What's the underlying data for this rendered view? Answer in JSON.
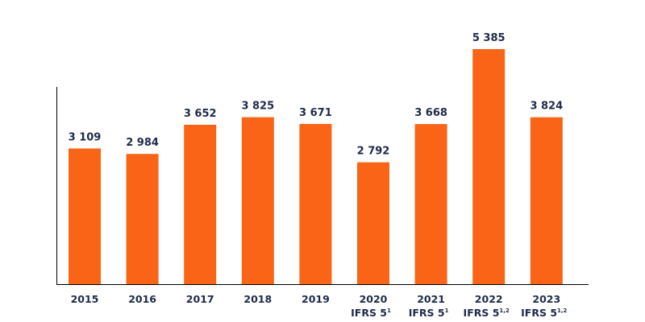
{
  "chart_data": {
    "type": "bar",
    "title": "",
    "xlabel": "",
    "ylabel": "",
    "ylim": [
      0,
      5385
    ],
    "grid": false,
    "categories": [
      {
        "year": "2015",
        "note": "",
        "sup": ""
      },
      {
        "year": "2016",
        "note": "",
        "sup": ""
      },
      {
        "year": "2017",
        "note": "",
        "sup": ""
      },
      {
        "year": "2018",
        "note": "",
        "sup": ""
      },
      {
        "year": "2019",
        "note": "",
        "sup": ""
      },
      {
        "year": "2020",
        "note": "IFRS 5",
        "sup": "1"
      },
      {
        "year": "2021",
        "note": "IFRS 5",
        "sup": "1"
      },
      {
        "year": "2022",
        "note": "IFRS 5",
        "sup": "1,2"
      },
      {
        "year": "2023",
        "note": "IFRS 5",
        "sup": "1,2"
      }
    ],
    "values": [
      3109,
      2984,
      3652,
      3825,
      3671,
      2792,
      3668,
      5385,
      3824
    ],
    "data_labels": [
      "3 109",
      "2 984",
      "3 652",
      "3 825",
      "3 671",
      "2 792",
      "3 668",
      "5 385",
      "3 824"
    ],
    "colors": {
      "bar": "#F96416",
      "text": "#1E2A4A",
      "axis": "#000000"
    }
  }
}
